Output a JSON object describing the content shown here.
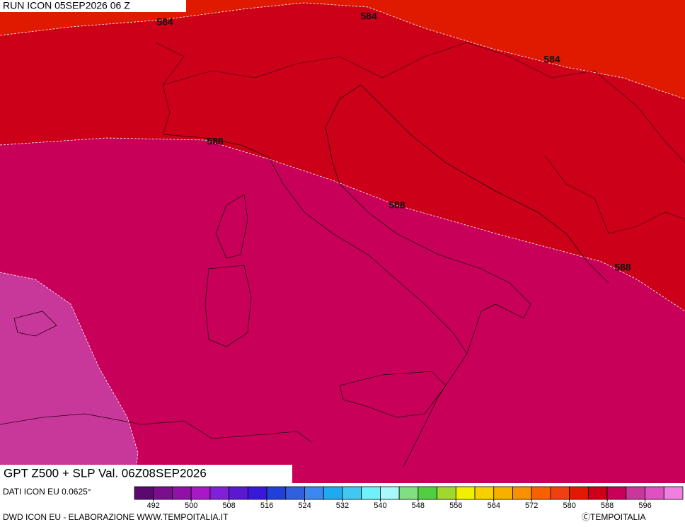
{
  "header": {
    "run": "RUN ICON 05SEP2026 06 Z"
  },
  "map": {
    "title": "GPT Z500 + SLP Val. 06Z08SEP2026",
    "contour_labels": [
      "584",
      "584",
      "584",
      "588",
      "588",
      "588"
    ]
  },
  "colorbar": {
    "lim": [
      488,
      604
    ],
    "colors": [
      "#5a0a6e",
      "#7a0e8c",
      "#9010a8",
      "#a818c8",
      "#8020d8",
      "#5a18d0",
      "#3a18d8",
      "#2040d8",
      "#3060e0",
      "#3a88f0",
      "#20a8f0",
      "#40c8f0",
      "#70f0f8",
      "#a8fafa",
      "#80e080",
      "#50d040",
      "#a0d830",
      "#f0f000",
      "#f8d000",
      "#f8b000",
      "#f89000",
      "#f86000",
      "#f04010",
      "#e01a00",
      "#cc0018",
      "#c8005a",
      "#c8389a",
      "#e050c0",
      "#f080e0"
    ],
    "ticks": [
      492,
      500,
      508,
      516,
      524,
      532,
      540,
      548,
      556,
      564,
      572,
      580,
      588,
      596
    ]
  },
  "footer": {
    "data_source": "DATI ICON EU 0.0625°",
    "credit": "DWD ICON EU - ELABORAZIONE WWW.TEMPOITALIA.IT",
    "copyright": "ⒸTEMPOITALIA"
  }
}
